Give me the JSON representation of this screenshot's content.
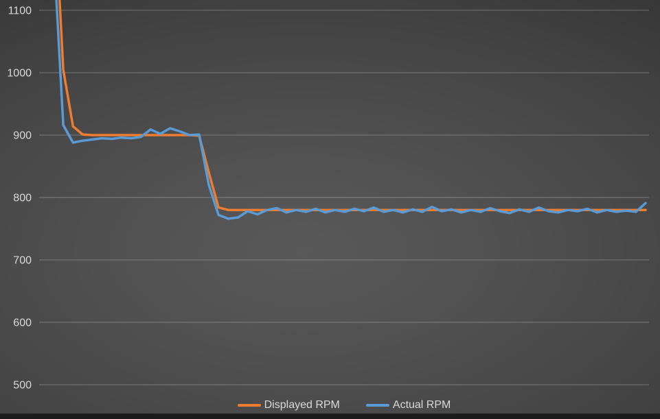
{
  "chart_data": {
    "type": "line",
    "title": "",
    "xlabel": "",
    "ylabel": "",
    "y_ticks": [
      1100,
      1000,
      900,
      800,
      700,
      600,
      500
    ],
    "ylim_visible": [
      483,
      1116
    ],
    "grid": true,
    "legend_position": "bottom",
    "axis_label_color": "#d9d9d9",
    "gridline_color": "rgba(255,255,255,0.27)",
    "series": [
      {
        "name": "Displayed RPM",
        "color": "#ED7D31",
        "values": [
          1300,
          1005,
          914,
          901,
          900,
          900,
          900,
          900,
          900,
          900,
          900,
          900,
          900,
          900,
          900,
          899,
          840,
          784,
          780,
          780,
          780,
          780,
          780,
          780,
          780,
          780,
          780,
          780,
          780,
          780,
          780,
          780,
          780,
          780,
          780,
          780,
          780,
          780,
          780,
          780,
          780,
          780,
          780,
          780,
          780,
          780,
          780,
          780,
          780,
          780,
          780,
          780,
          780,
          780,
          780,
          780,
          780,
          780,
          780,
          780,
          780,
          780
        ]
      },
      {
        "name": "Actual RPM",
        "color": "#5B9BD5",
        "values": [
          1200,
          916,
          888,
          891,
          893,
          895,
          894,
          896,
          895,
          897,
          909,
          902,
          911,
          906,
          900,
          901,
          820,
          772,
          766,
          768,
          778,
          773,
          780,
          783,
          776,
          780,
          777,
          782,
          776,
          780,
          777,
          782,
          778,
          784,
          777,
          780,
          776,
          781,
          777,
          785,
          778,
          781,
          776,
          780,
          777,
          783,
          778,
          775,
          781,
          777,
          784,
          778,
          776,
          780,
          778,
          782,
          776,
          780,
          777,
          779,
          777,
          791
        ]
      }
    ]
  },
  "legend": {
    "items": [
      {
        "label": "Displayed RPM",
        "color": "#ED7D31"
      },
      {
        "label": "Actual RPM",
        "color": "#5B9BD5"
      }
    ]
  }
}
